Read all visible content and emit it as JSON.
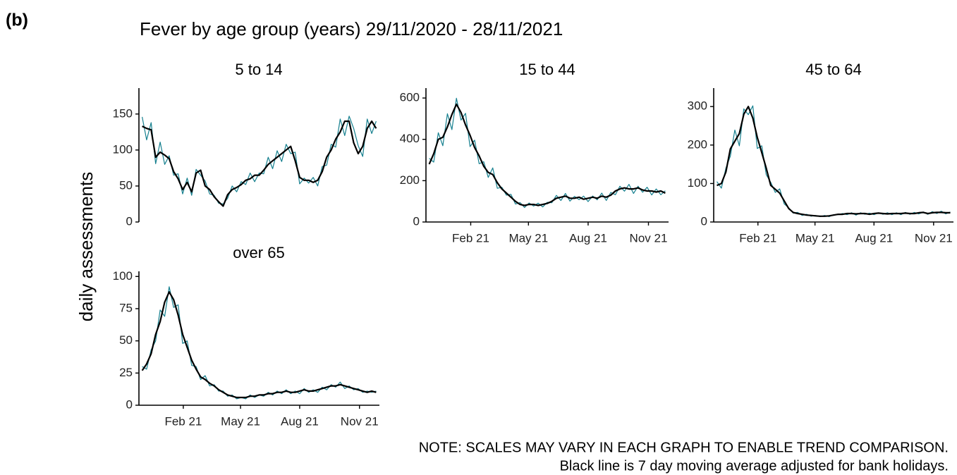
{
  "panel_label": "(b)",
  "title": "Fever by age group (years) 29/11/2020 - 28/11/2021",
  "y_label": "daily assessments",
  "notes": [
    "NOTE: SCALES MAY VARY IN EACH GRAPH TO ENABLE TREND COMPARISON.",
    "Black line is 7 day moving average adjusted for bank holidays."
  ],
  "chart_data": [
    {
      "type": "line",
      "title": "5 to 14",
      "x": [
        0,
        7,
        14,
        21,
        28,
        35,
        42,
        49,
        56,
        63,
        70,
        77,
        84,
        91,
        98,
        105,
        112,
        119,
        126,
        133,
        140,
        147,
        154,
        161,
        168,
        175,
        182,
        189,
        196,
        203,
        210,
        217,
        224,
        231,
        238,
        245,
        252,
        259,
        266,
        273,
        280,
        287,
        294,
        301,
        308,
        315,
        322,
        329,
        336,
        343,
        350,
        357,
        364
      ],
      "xlim": [
        -5,
        369
      ],
      "ylim": [
        0,
        186
      ],
      "yticks": [
        0,
        50,
        100,
        150
      ],
      "series": [
        {
          "color": "#16808f",
          "values": [
            146,
            114,
            138,
            81,
            111,
            80,
            92,
            65,
            67,
            39,
            61,
            37,
            73,
            65,
            57,
            39,
            37,
            26,
            25,
            33,
            50,
            42,
            56,
            52,
            68,
            56,
            68,
            67,
            90,
            74,
            99,
            84,
            108,
            95,
            97,
            53,
            61,
            54,
            62,
            50,
            77,
            79,
            108,
            104,
            143,
            120,
            147,
            130,
            106,
            91,
            143,
            123,
            140
          ]
        },
        {
          "color": "#000000",
          "values": [
            133,
            130,
            128,
            90,
            97,
            93,
            88,
            70,
            60,
            45,
            55,
            42,
            68,
            72,
            50,
            45,
            35,
            28,
            22,
            38,
            45,
            48,
            52,
            58,
            60,
            65,
            65,
            72,
            80,
            85,
            90,
            95,
            100,
            105,
            85,
            62,
            58,
            58,
            55,
            58,
            70,
            90,
            100,
            115,
            125,
            140,
            140,
            110,
            95,
            105,
            130,
            140,
            130
          ]
        }
      ]
    },
    {
      "type": "line",
      "title": "15 to 44",
      "x": [
        0,
        7,
        14,
        21,
        28,
        35,
        42,
        49,
        56,
        63,
        70,
        77,
        84,
        91,
        98,
        105,
        112,
        119,
        126,
        133,
        140,
        147,
        154,
        161,
        168,
        175,
        182,
        189,
        196,
        203,
        210,
        217,
        224,
        231,
        238,
        245,
        252,
        259,
        266,
        273,
        280,
        287,
        294,
        301,
        308,
        315,
        322,
        329,
        336,
        343,
        350,
        357,
        364
      ],
      "xlim": [
        -5,
        369
      ],
      "xticks": [
        {
          "value": 64,
          "label": "Feb 21"
        },
        {
          "value": 153,
          "label": "May 21"
        },
        {
          "value": 245,
          "label": "Aug 21"
        },
        {
          "value": 338,
          "label": "Nov 21"
        }
      ],
      "ylim": [
        0,
        648
      ],
      "yticks": [
        0,
        200,
        400,
        600
      ],
      "series": [
        {
          "color": "#16808f",
          "values": [
            308,
            290,
            432,
            369,
            524,
            447,
            599,
            493,
            526,
            365,
            396,
            282,
            292,
            216,
            262,
            163,
            168,
            130,
            134,
            87,
            94,
            70,
            92,
            77,
            91,
            73,
            95,
            93,
            129,
            104,
            138,
            101,
            124,
            108,
            125,
            99,
            126,
            107,
            140,
            104,
            143,
            132,
            173,
            149,
            182,
            138,
            173,
            144,
            168,
            131,
            160,
            132,
            151
          ]
        },
        {
          "color": "#000000",
          "values": [
            280,
            330,
            400,
            410,
            460,
            520,
            570,
            530,
            470,
            420,
            360,
            320,
            270,
            240,
            230,
            190,
            160,
            140,
            120,
            100,
            85,
            80,
            85,
            85,
            80,
            85,
            90,
            100,
            115,
            120,
            125,
            115,
            115,
            120,
            110,
            115,
            120,
            115,
            125,
            120,
            130,
            150,
            160,
            165,
            160,
            160,
            165,
            155,
            150,
            150,
            145,
            150,
            140
          ]
        }
      ]
    },
    {
      "type": "line",
      "title": "45 to 64",
      "x": [
        0,
        7,
        14,
        21,
        28,
        35,
        42,
        49,
        56,
        63,
        70,
        77,
        84,
        91,
        98,
        105,
        112,
        119,
        126,
        133,
        140,
        147,
        154,
        161,
        168,
        175,
        182,
        189,
        196,
        203,
        210,
        217,
        224,
        231,
        238,
        245,
        252,
        259,
        266,
        273,
        280,
        287,
        294,
        301,
        308,
        315,
        322,
        329,
        336,
        343,
        350,
        357,
        364
      ],
      "xlim": [
        -5,
        369
      ],
      "xticks": [
        {
          "value": 64,
          "label": "Feb 21"
        },
        {
          "value": 153,
          "label": "May 21"
        },
        {
          "value": 245,
          "label": "Aug 21"
        },
        {
          "value": 338,
          "label": "Nov 21"
        }
      ],
      "ylim": [
        0,
        348
      ],
      "yticks": [
        0,
        100,
        200,
        300
      ],
      "series": [
        {
          "color": "#16808f",
          "values": [
            105,
            88,
            140,
            171,
            239,
            198,
            294,
            279,
            302,
            191,
            198,
            123,
            103,
            77,
            86,
            47,
            37,
            23,
            25,
            17,
            20,
            15,
            17,
            14,
            17,
            14,
            19,
            19,
            22,
            19,
            24,
            18,
            24,
            20,
            23,
            19,
            24,
            20,
            24,
            19,
            24,
            19,
            25,
            20,
            25,
            21,
            26,
            20,
            27,
            22,
            28,
            21,
            26
          ]
        },
        {
          "color": "#000000",
          "values": [
            95,
            100,
            130,
            190,
            210,
            230,
            280,
            300,
            270,
            220,
            180,
            140,
            95,
            85,
            75,
            55,
            35,
            25,
            22,
            20,
            18,
            17,
            16,
            15,
            15,
            16,
            18,
            20,
            20,
            22,
            22,
            21,
            22,
            22,
            20,
            22,
            23,
            22,
            21,
            22,
            22,
            22,
            23,
            22,
            22,
            24,
            25,
            22,
            24,
            25,
            25,
            24,
            24
          ]
        }
      ]
    },
    {
      "type": "line",
      "title": "over 65",
      "x": [
        0,
        7,
        14,
        21,
        28,
        35,
        42,
        49,
        56,
        63,
        70,
        77,
        84,
        91,
        98,
        105,
        112,
        119,
        126,
        133,
        140,
        147,
        154,
        161,
        168,
        175,
        182,
        189,
        196,
        203,
        210,
        217,
        224,
        231,
        238,
        245,
        252,
        259,
        266,
        273,
        280,
        287,
        294,
        301,
        308,
        315,
        322,
        329,
        336,
        343,
        350,
        357,
        364
      ],
      "xlim": [
        -5,
        369
      ],
      "xticks": [
        {
          "value": 64,
          "label": "Feb 21"
        },
        {
          "value": 153,
          "label": "May 21"
        },
        {
          "value": 245,
          "label": "Aug 21"
        },
        {
          "value": 338,
          "label": "Nov 21"
        }
      ],
      "ylim": [
        0,
        104
      ],
      "yticks": [
        0,
        25,
        50,
        75,
        100
      ],
      "series": [
        {
          "color": "#16808f",
          "values": [
            30,
            28,
            43,
            50,
            74,
            69,
            92,
            76,
            78,
            48,
            50,
            31,
            30,
            20,
            23,
            15,
            16,
            11,
            11,
            7,
            8,
            5,
            6,
            5,
            8,
            6,
            8,
            7,
            10,
            8,
            11,
            9,
            12,
            9,
            11,
            9,
            13,
            10,
            12,
            10,
            14,
            12,
            16,
            14,
            18,
            13,
            15,
            12,
            13,
            10,
            11,
            10,
            11
          ]
        },
        {
          "color": "#000000",
          "values": [
            27,
            32,
            40,
            55,
            65,
            80,
            88,
            82,
            70,
            55,
            45,
            35,
            28,
            22,
            20,
            17,
            15,
            12,
            10,
            8,
            7,
            6,
            6,
            6,
            7,
            7,
            8,
            8,
            9,
            9,
            10,
            10,
            11,
            10,
            10,
            11,
            12,
            11,
            11,
            12,
            13,
            14,
            15,
            15,
            16,
            15,
            14,
            13,
            12,
            11,
            10,
            11,
            10
          ]
        }
      ]
    }
  ]
}
